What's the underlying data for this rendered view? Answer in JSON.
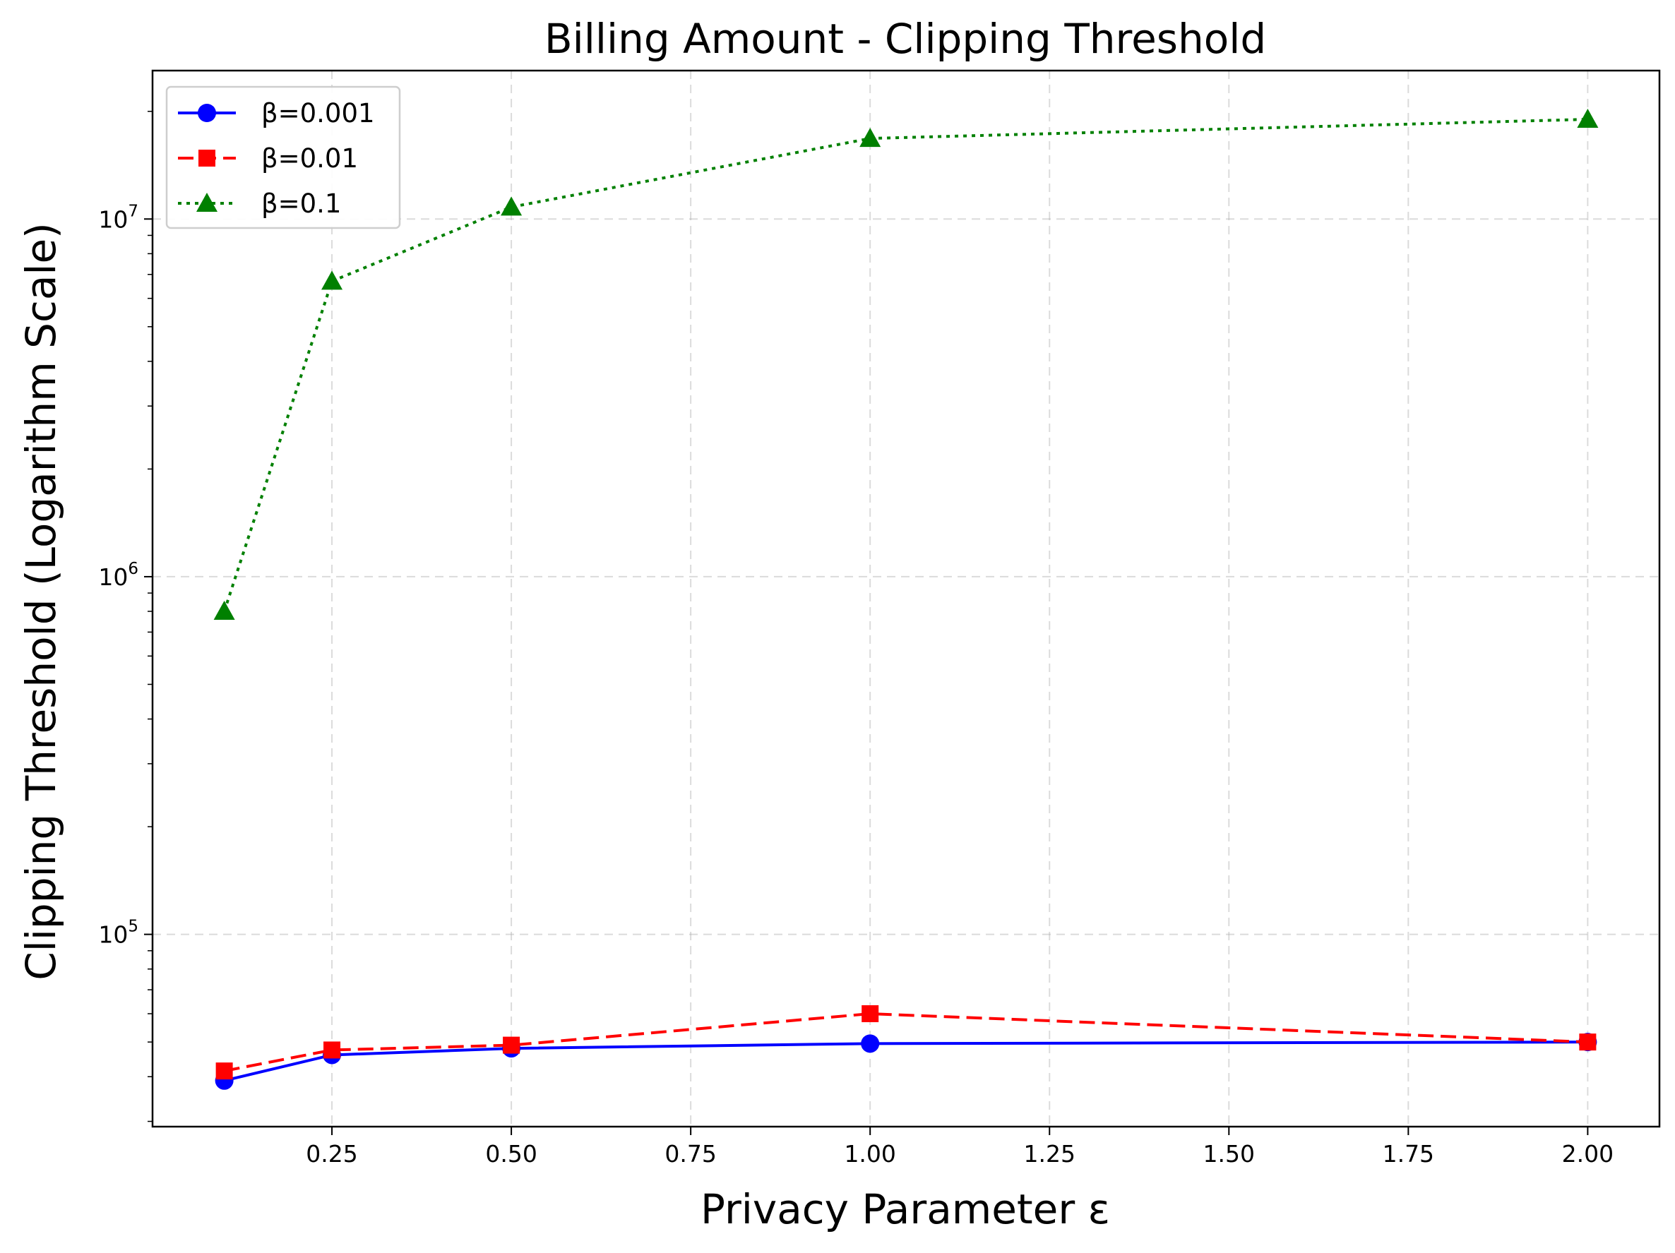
{
  "chart_data": {
    "type": "line",
    "title": "Billing Amount - Clipping Threshold",
    "xlabel": "Privacy Parameter ε",
    "ylabel": "Clipping Threshold (Logarithm Scale)",
    "yscale": "log",
    "xlim": [
      0.0,
      2.1
    ],
    "ylim": [
      29000,
      26000000
    ],
    "x_ticks": [
      0.25,
      0.5,
      0.75,
      1.0,
      1.25,
      1.5,
      1.75,
      2.0
    ],
    "x_tick_labels": [
      "0.25",
      "0.50",
      "0.75",
      "1.00",
      "1.25",
      "1.50",
      "1.75",
      "2.00"
    ],
    "y_ticks": [
      100000,
      1000000,
      10000000
    ],
    "y_tick_labels": [
      {
        "base": "10",
        "exp": "5"
      },
      {
        "base": "10",
        "exp": "6"
      },
      {
        "base": "10",
        "exp": "7"
      }
    ],
    "grid": true,
    "legend_position": "upper-left",
    "x": [
      0.1,
      0.25,
      0.5,
      1.0,
      2.0
    ],
    "series": [
      {
        "name": "β=0.001",
        "color": "#0000ff",
        "marker": "circle",
        "linestyle": "solid",
        "values": [
          39000,
          46000,
          48000,
          49500,
          50000
        ]
      },
      {
        "name": "β=0.01",
        "color": "#ff0000",
        "marker": "square",
        "linestyle": "dashed",
        "values": [
          41500,
          47500,
          49000,
          60000,
          50000
        ]
      },
      {
        "name": "β=0.1",
        "color": "#008000",
        "marker": "triangle",
        "linestyle": "dotted",
        "values": [
          800000,
          6700000,
          10800000,
          16800000,
          19000000
        ]
      }
    ]
  }
}
